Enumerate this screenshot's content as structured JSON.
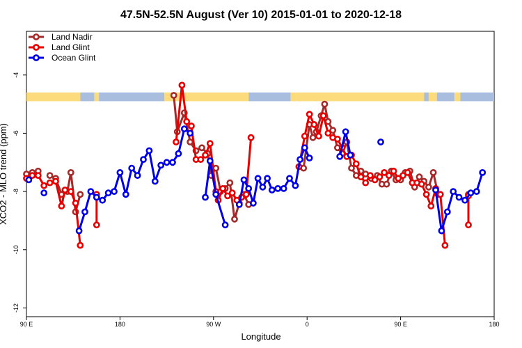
{
  "chart_data": {
    "type": "line",
    "title": "47.5N-52.5N August (Ver 10)   2015-01-01 to 2020-12-18",
    "xlabel": "Longitude",
    "ylabel": "XCO2 - MLO trend (ppm)",
    "xlim": [
      0,
      400
    ],
    "ylim": [
      -12.3,
      -2.5
    ],
    "x_ticks": [
      {
        "value": 0,
        "label": "90 E"
      },
      {
        "value": 80,
        "label": "180"
      },
      {
        "value": 160,
        "label": "90 W"
      },
      {
        "value": 240,
        "label": "0"
      },
      {
        "value": 320,
        "label": "90 E"
      },
      {
        "value": 400,
        "label": "180"
      }
    ],
    "y_ticks": [
      {
        "value": -4,
        "label": "-4"
      },
      {
        "value": -6,
        "label": "-6"
      },
      {
        "value": -8,
        "label": "-8"
      },
      {
        "value": -10,
        "label": "-10"
      },
      {
        "value": -12,
        "label": "-12"
      }
    ],
    "surface_band": {
      "y_range": [
        -4.9,
        -4.6
      ],
      "land_color": "#fcdb7c",
      "ocean_color": "#a9bedf",
      "segments": [
        {
          "from": 0,
          "to": 46,
          "type": "land"
        },
        {
          "from": 46,
          "to": 58,
          "type": "ocean"
        },
        {
          "from": 58,
          "to": 62,
          "type": "land"
        },
        {
          "from": 62,
          "to": 118,
          "type": "ocean"
        },
        {
          "from": 118,
          "to": 190,
          "type": "land"
        },
        {
          "from": 190,
          "to": 226,
          "type": "ocean"
        },
        {
          "from": 226,
          "to": 340,
          "type": "land"
        },
        {
          "from": 340,
          "to": 344,
          "type": "ocean"
        },
        {
          "from": 344,
          "to": 351,
          "type": "land"
        },
        {
          "from": 351,
          "to": 366,
          "type": "ocean"
        },
        {
          "from": 366,
          "to": 371,
          "type": "land"
        },
        {
          "from": 371,
          "to": 400,
          "type": "ocean"
        }
      ]
    },
    "series": [
      {
        "name": "Land Nadir",
        "color": "#a52a2a",
        "points": [
          [
            0,
            -7.4
          ],
          [
            5,
            -7.35
          ],
          [
            10,
            -7.3
          ],
          [
            20,
            -7.45
          ],
          [
            25,
            -7.55
          ],
          [
            30,
            -8.1
          ],
          [
            35,
            -8.0
          ],
          [
            38,
            -7.35
          ],
          [
            42,
            -8.7
          ],
          [
            46,
            -8.1
          ],
          [
            126,
            -4.7
          ],
          [
            129,
            -5.95
          ],
          [
            135,
            -5.3
          ],
          [
            140,
            -6.3
          ],
          [
            145,
            -6.6
          ],
          [
            150,
            -6.5
          ],
          [
            155,
            -6.7
          ],
          [
            158,
            -7.45
          ],
          [
            162,
            -7.2
          ],
          [
            166,
            -8.0
          ],
          [
            170,
            -7.9
          ],
          [
            174,
            -7.7
          ],
          [
            178,
            -8.95
          ],
          [
            182,
            -8.4
          ],
          [
            186,
            -8.1
          ],
          [
            190,
            -8.45
          ],
          [
            237,
            -7.2
          ],
          [
            242,
            -5.7
          ],
          [
            245,
            -6.15
          ],
          [
            248,
            -5.95
          ],
          [
            252,
            -5.4
          ],
          [
            255,
            -5.0
          ],
          [
            258,
            -5.6
          ],
          [
            262,
            -5.9
          ],
          [
            266,
            -6.5
          ],
          [
            270,
            -6.7
          ],
          [
            274,
            -6.3
          ],
          [
            278,
            -7.2
          ],
          [
            282,
            -7.45
          ],
          [
            286,
            -7.3
          ],
          [
            290,
            -7.4
          ],
          [
            295,
            -7.55
          ],
          [
            300,
            -7.45
          ],
          [
            304,
            -7.75
          ],
          [
            308,
            -7.75
          ],
          [
            312,
            -7.3
          ],
          [
            316,
            -7.6
          ],
          [
            320,
            -7.6
          ],
          [
            324,
            -7.35
          ],
          [
            328,
            -7.3
          ],
          [
            332,
            -7.85
          ],
          [
            336,
            -7.5
          ],
          [
            340,
            -7.65
          ],
          [
            344,
            -7.85
          ],
          [
            348,
            -7.35
          ],
          [
            352,
            -8.1
          ],
          [
            378,
            -8.1
          ]
        ]
      },
      {
        "name": "Land Glint",
        "color": "#e60000",
        "points": [
          [
            0,
            -7.55
          ],
          [
            5,
            -7.45
          ],
          [
            10,
            -7.45
          ],
          [
            15,
            -7.8
          ],
          [
            20,
            -7.7
          ],
          [
            25,
            -7.65
          ],
          [
            30,
            -8.5
          ],
          [
            33,
            -7.95
          ],
          [
            38,
            -8.0
          ],
          [
            42,
            -8.4
          ],
          [
            46,
            -9.85
          ],
          [
            60,
            -8.1
          ],
          [
            60,
            -9.15
          ],
          [
            128,
            -6.3
          ],
          [
            133,
            -4.35
          ],
          [
            137,
            -5.6
          ],
          [
            141,
            -5.75
          ],
          [
            145,
            -6.9
          ],
          [
            149,
            -6.9
          ],
          [
            153,
            -6.75
          ],
          [
            157,
            -6.35
          ],
          [
            162,
            -8.0
          ],
          [
            164,
            -8.3
          ],
          [
            168,
            -7.9
          ],
          [
            172,
            -8.15
          ],
          [
            176,
            -8.05
          ],
          [
            180,
            -8.3
          ],
          [
            184,
            -8.2
          ],
          [
            188,
            -8.1
          ],
          [
            192,
            -6.15
          ],
          [
            233,
            -7.15
          ],
          [
            238,
            -6.1
          ],
          [
            242,
            -5.35
          ],
          [
            246,
            -5.7
          ],
          [
            250,
            -6.1
          ],
          [
            254,
            -5.4
          ],
          [
            258,
            -6.0
          ],
          [
            262,
            -6.15
          ],
          [
            266,
            -6.2
          ],
          [
            270,
            -6.5
          ],
          [
            274,
            -6.8
          ],
          [
            278,
            -6.75
          ],
          [
            282,
            -7.05
          ],
          [
            286,
            -7.5
          ],
          [
            290,
            -7.7
          ],
          [
            294,
            -7.45
          ],
          [
            298,
            -7.6
          ],
          [
            302,
            -7.5
          ],
          [
            306,
            -7.35
          ],
          [
            310,
            -7.45
          ],
          [
            314,
            -7.3
          ],
          [
            318,
            -7.55
          ],
          [
            322,
            -7.45
          ],
          [
            326,
            -7.35
          ],
          [
            330,
            -7.7
          ],
          [
            334,
            -7.7
          ],
          [
            338,
            -7.75
          ],
          [
            342,
            -8.1
          ],
          [
            346,
            -8.5
          ],
          [
            350,
            -7.9
          ],
          [
            354,
            -8.1
          ],
          [
            358,
            -9.85
          ],
          [
            378,
            -8.15
          ],
          [
            378,
            -9.15
          ]
        ]
      },
      {
        "name": "Ocean Glint",
        "color": "#0000e6",
        "points": [
          [
            2,
            -7.6
          ],
          [
            15,
            -8.05
          ],
          [
            45,
            -9.35
          ],
          [
            50,
            -8.7
          ],
          [
            55,
            -8.0
          ],
          [
            60,
            -8.2
          ],
          [
            65,
            -8.3
          ],
          [
            70,
            -8.05
          ],
          [
            75,
            -8.0
          ],
          [
            80,
            -7.35
          ],
          [
            85,
            -8.1
          ],
          [
            90,
            -7.2
          ],
          [
            95,
            -7.45
          ],
          [
            100,
            -6.9
          ],
          [
            105,
            -6.6
          ],
          [
            110,
            -7.65
          ],
          [
            115,
            -7.1
          ],
          [
            120,
            -7.0
          ],
          [
            125,
            -7.0
          ],
          [
            130,
            -6.7
          ],
          [
            135,
            -5.85
          ],
          [
            140,
            -6.0
          ],
          [
            153,
            -8.2
          ],
          [
            157,
            -6.95
          ],
          [
            162,
            -8.1
          ],
          [
            170,
            -9.15
          ],
          [
            182,
            -8.45
          ],
          [
            186,
            -7.6
          ],
          [
            190,
            -7.9
          ],
          [
            194,
            -8.4
          ],
          [
            198,
            -7.55
          ],
          [
            202,
            -7.85
          ],
          [
            206,
            -7.55
          ],
          [
            210,
            -7.95
          ],
          [
            215,
            -7.9
          ],
          [
            220,
            -7.9
          ],
          [
            225,
            -7.55
          ],
          [
            230,
            -7.8
          ],
          [
            234,
            -6.9
          ],
          [
            238,
            -6.5
          ],
          [
            242,
            -6.85
          ],
          [
            268,
            -6.8
          ],
          [
            273,
            -5.95
          ],
          [
            277,
            -6.75
          ],
          [
            303,
            -6.3
          ],
          [
            350,
            -7.95
          ],
          [
            355,
            -9.35
          ],
          [
            360,
            -8.7
          ],
          [
            365,
            -8.0
          ],
          [
            370,
            -8.2
          ],
          [
            375,
            -8.3
          ],
          [
            380,
            -8.05
          ],
          [
            385,
            -8.0
          ],
          [
            390,
            -7.35
          ]
        ]
      }
    ]
  }
}
